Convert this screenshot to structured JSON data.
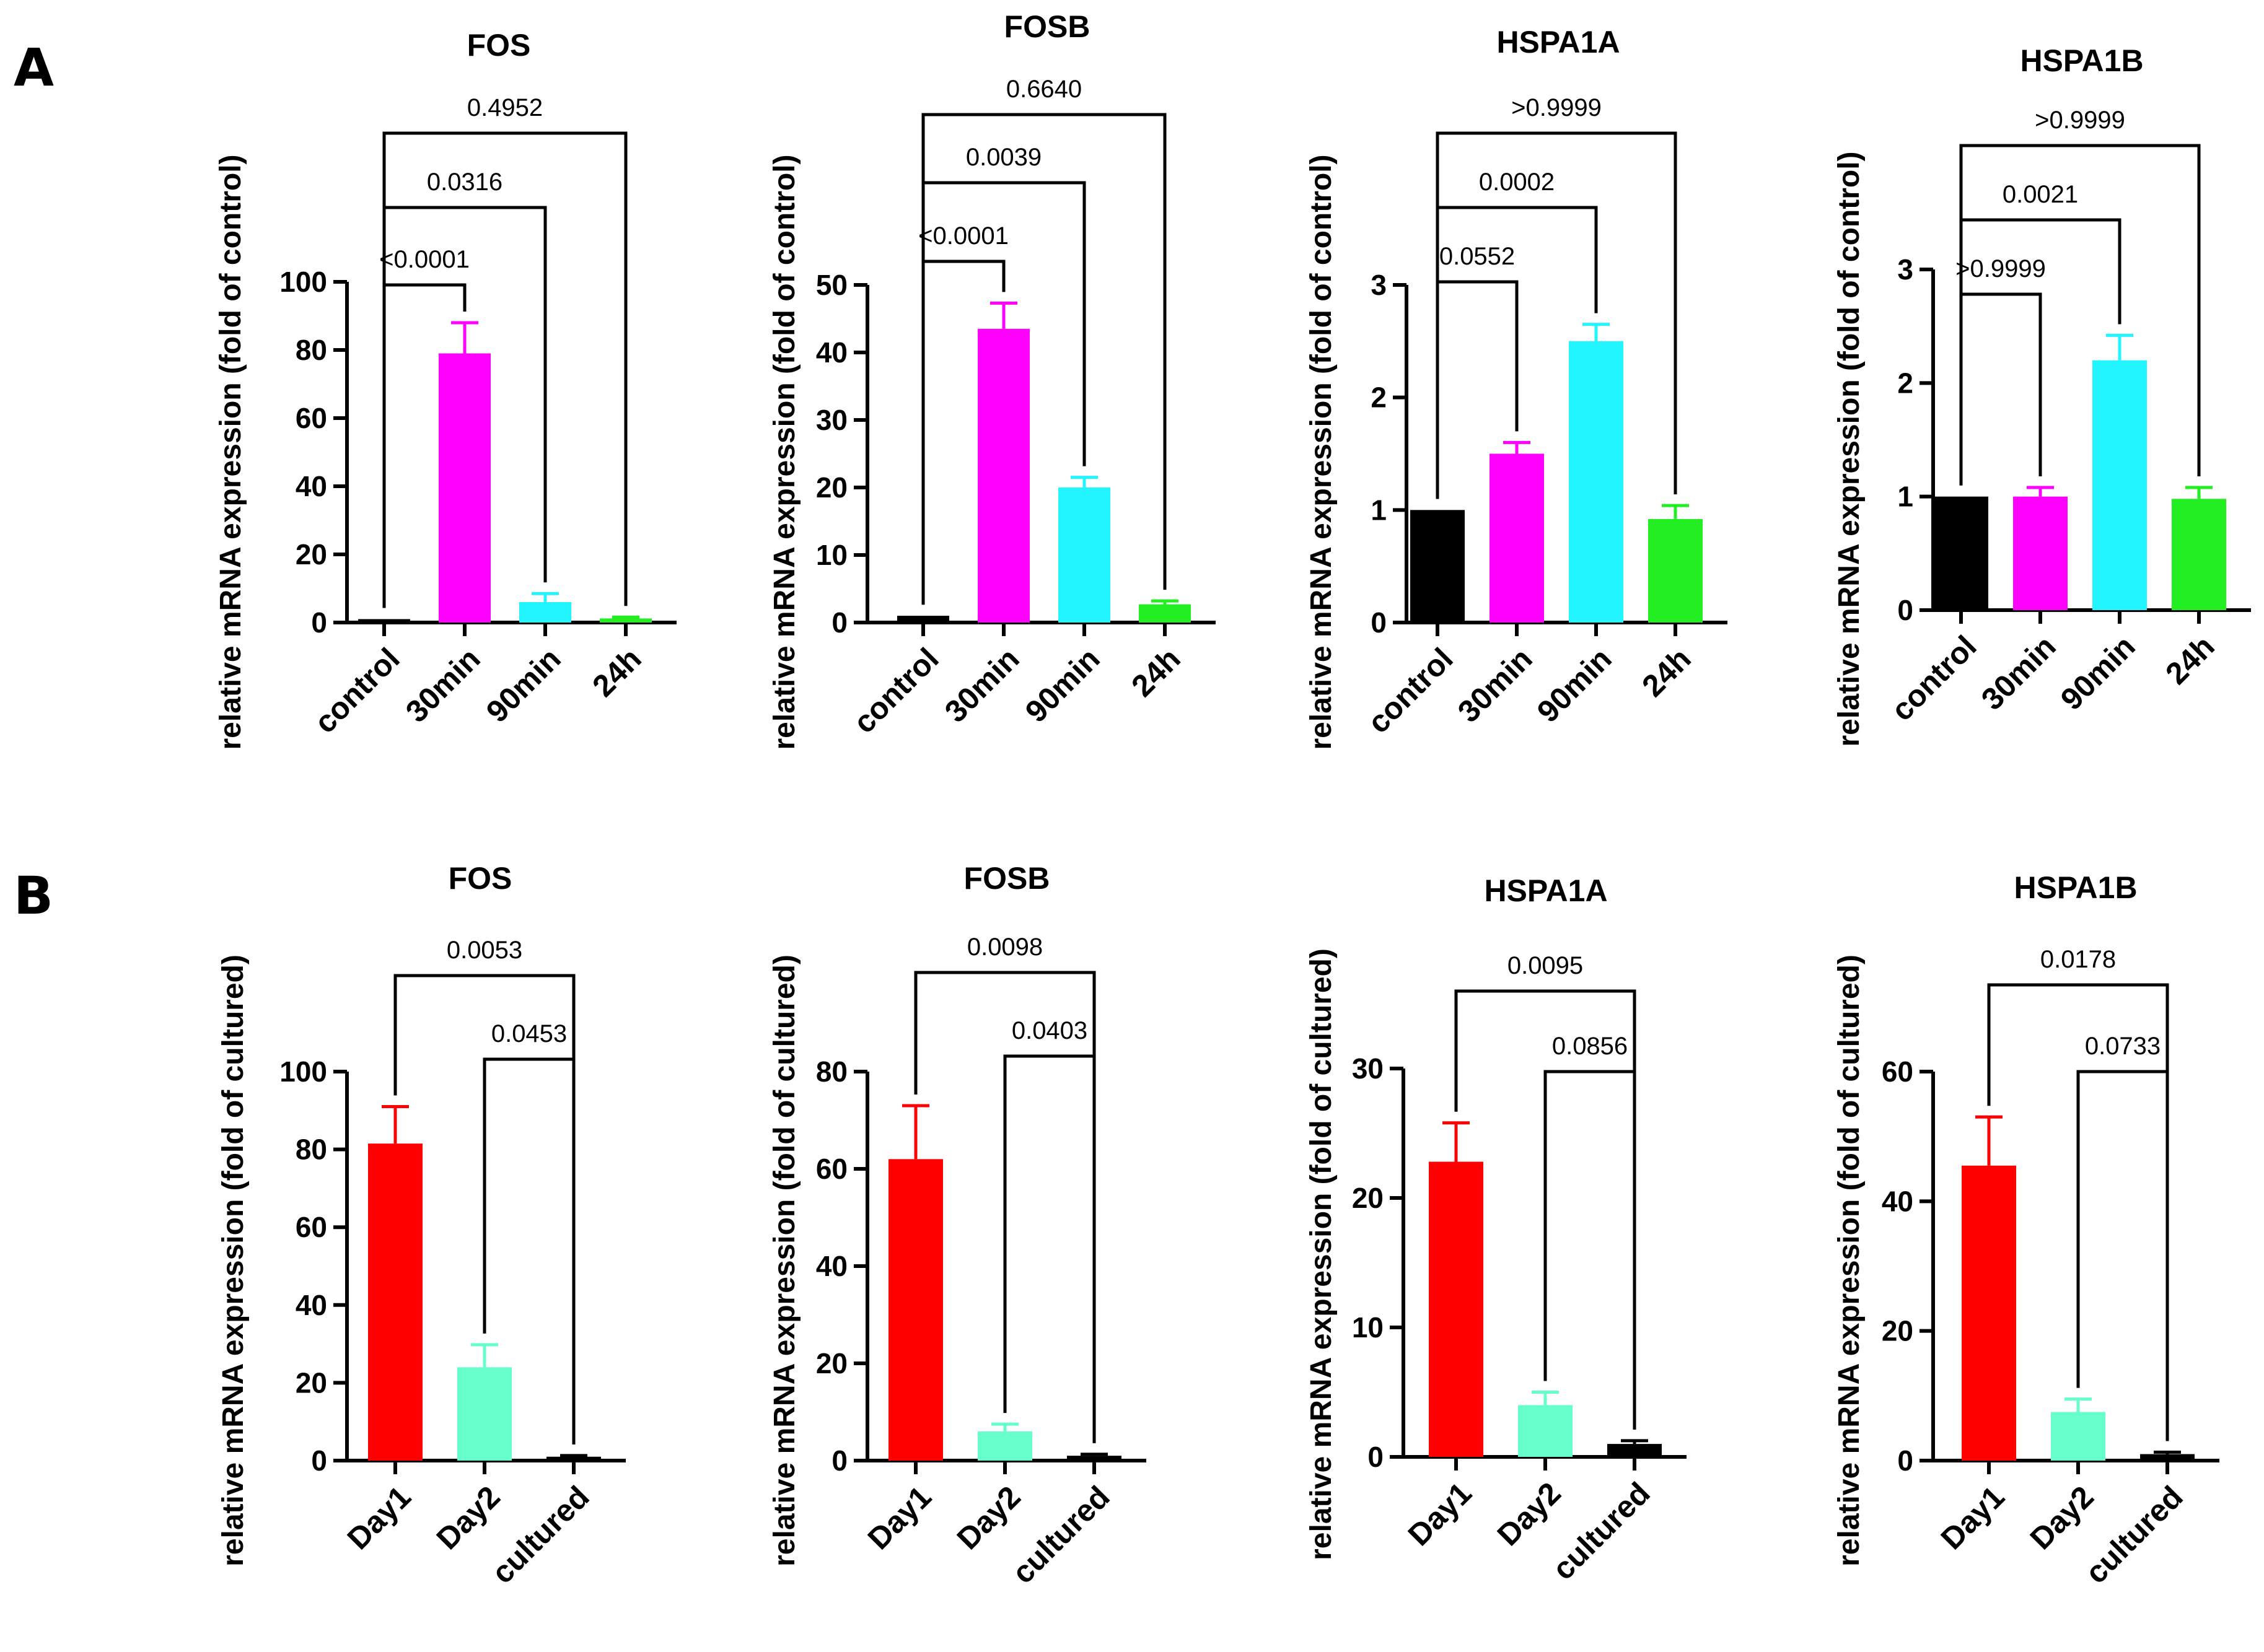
{
  "panels": [
    {
      "letter": "A"
    },
    {
      "letter": "B"
    }
  ],
  "chart_data": [
    {
      "type": "bar",
      "panel": "A",
      "title": "FOS",
      "ylabel": "relative mRNA expression (fold of control)",
      "categories": [
        "control",
        "30min",
        "90min",
        "24h"
      ],
      "values": [
        1,
        79,
        6,
        1.2
      ],
      "errors": [
        0,
        9,
        2.5,
        0.4
      ],
      "colors": [
        "#000000",
        "#ff00ff",
        "#22f5ff",
        "#22ee22"
      ],
      "ylim": [
        0,
        100
      ],
      "yticks": [
        0,
        20,
        40,
        60,
        80,
        100
      ],
      "annotations": [
        {
          "from": 0,
          "to": 1,
          "label": "<0.0001"
        },
        {
          "from": 0,
          "to": 2,
          "label": "0.0316"
        },
        {
          "from": 0,
          "to": 3,
          "label": "0.4952"
        }
      ]
    },
    {
      "type": "bar",
      "panel": "A",
      "title": "FOSB",
      "ylabel": "relative mRNA expression (fold of control)",
      "categories": [
        "control",
        "30min",
        "90min",
        "24h"
      ],
      "values": [
        1,
        43.5,
        20,
        2.7
      ],
      "errors": [
        0,
        3.8,
        1.5,
        0.5
      ],
      "colors": [
        "#000000",
        "#ff00ff",
        "#22f5ff",
        "#22ee22"
      ],
      "ylim": [
        0,
        50
      ],
      "yticks": [
        0,
        10,
        20,
        30,
        40,
        50
      ],
      "annotations": [
        {
          "from": 0,
          "to": 1,
          "label": "<0.0001"
        },
        {
          "from": 0,
          "to": 2,
          "label": "0.0039"
        },
        {
          "from": 0,
          "to": 3,
          "label": "0.6640"
        }
      ]
    },
    {
      "type": "bar",
      "panel": "A",
      "title": "HSPA1A",
      "ylabel": "relative mRNA expression (fold of control)",
      "categories": [
        "control",
        "30min",
        "90min",
        "24h"
      ],
      "values": [
        1,
        1.5,
        2.5,
        0.92
      ],
      "errors": [
        0,
        0.1,
        0.15,
        0.12
      ],
      "colors": [
        "#000000",
        "#ff00ff",
        "#22f5ff",
        "#22ee22"
      ],
      "ylim": [
        0,
        3
      ],
      "yticks": [
        0,
        1,
        2,
        3
      ],
      "annotations": [
        {
          "from": 0,
          "to": 1,
          "label": "0.0552"
        },
        {
          "from": 0,
          "to": 2,
          "label": "0.0002"
        },
        {
          "from": 0,
          "to": 3,
          "label": ">0.9999"
        }
      ]
    },
    {
      "type": "bar",
      "panel": "A",
      "title": "HSPA1B",
      "ylabel": "relative mRNA expression (fold of control)",
      "categories": [
        "control",
        "30min",
        "90min",
        "24h"
      ],
      "values": [
        1,
        1.0,
        2.2,
        0.98
      ],
      "errors": [
        0,
        0.08,
        0.22,
        0.1
      ],
      "colors": [
        "#000000",
        "#ff00ff",
        "#22f5ff",
        "#22ee22"
      ],
      "ylim": [
        0,
        3
      ],
      "yticks": [
        0,
        1,
        2,
        3
      ],
      "annotations": [
        {
          "from": 0,
          "to": 1,
          "label": ">0.9999"
        },
        {
          "from": 0,
          "to": 2,
          "label": "0.0021"
        },
        {
          "from": 0,
          "to": 3,
          "label": ">0.9999"
        }
      ]
    },
    {
      "type": "bar",
      "panel": "B",
      "title": "FOS",
      "ylabel": "relative mRNA expression (fold of cultured)",
      "categories": [
        "Day1",
        "Day2",
        "cultured"
      ],
      "values": [
        81.5,
        24,
        1
      ],
      "errors": [
        9.5,
        5.8,
        0.3
      ],
      "colors": [
        "#ff0000",
        "#66ffcc",
        "#000000"
      ],
      "ylim": [
        0,
        100
      ],
      "yticks": [
        0,
        20,
        40,
        60,
        80,
        100
      ],
      "annotations": [
        {
          "from": 0,
          "to": 2,
          "label": "0.0053"
        },
        {
          "from": 1,
          "to": 2,
          "label": "0.0453"
        }
      ]
    },
    {
      "type": "bar",
      "panel": "B",
      "title": "FOSB",
      "ylabel": "relative mRNA expression (fold of cultured)",
      "categories": [
        "Day1",
        "Day2",
        "cultured"
      ],
      "values": [
        62,
        6,
        1
      ],
      "errors": [
        11,
        1.5,
        0.3
      ],
      "colors": [
        "#ff0000",
        "#66ffcc",
        "#000000"
      ],
      "ylim": [
        0,
        80
      ],
      "yticks": [
        0,
        20,
        40,
        60,
        80
      ],
      "annotations": [
        {
          "from": 0,
          "to": 2,
          "label": "0.0098"
        },
        {
          "from": 1,
          "to": 2,
          "label": "0.0403"
        }
      ]
    },
    {
      "type": "bar",
      "panel": "B",
      "title": "HSPA1A",
      "ylabel": "relative mRNA expression (fold of cultured)",
      "categories": [
        "Day1",
        "Day2",
        "cultured"
      ],
      "values": [
        22.8,
        4,
        1
      ],
      "errors": [
        3,
        1,
        0.25
      ],
      "colors": [
        "#ff0000",
        "#66ffcc",
        "#000000"
      ],
      "ylim": [
        0,
        30
      ],
      "yticks": [
        0,
        10,
        20,
        30
      ],
      "annotations": [
        {
          "from": 0,
          "to": 2,
          "label": "0.0095"
        },
        {
          "from": 1,
          "to": 2,
          "label": "0.0856"
        }
      ]
    },
    {
      "type": "bar",
      "panel": "B",
      "title": "HSPA1B",
      "ylabel": "relative mRNA expression (fold of cultured)",
      "categories": [
        "Day1",
        "Day2",
        "cultured"
      ],
      "values": [
        45.5,
        7.5,
        1
      ],
      "errors": [
        7.5,
        2,
        0.3
      ],
      "colors": [
        "#ff0000",
        "#66ffcc",
        "#000000"
      ],
      "ylim": [
        0,
        60
      ],
      "yticks": [
        0,
        20,
        40,
        60
      ],
      "annotations": [
        {
          "from": 0,
          "to": 2,
          "label": "0.0178"
        },
        {
          "from": 1,
          "to": 2,
          "label": "0.0733"
        }
      ]
    }
  ]
}
